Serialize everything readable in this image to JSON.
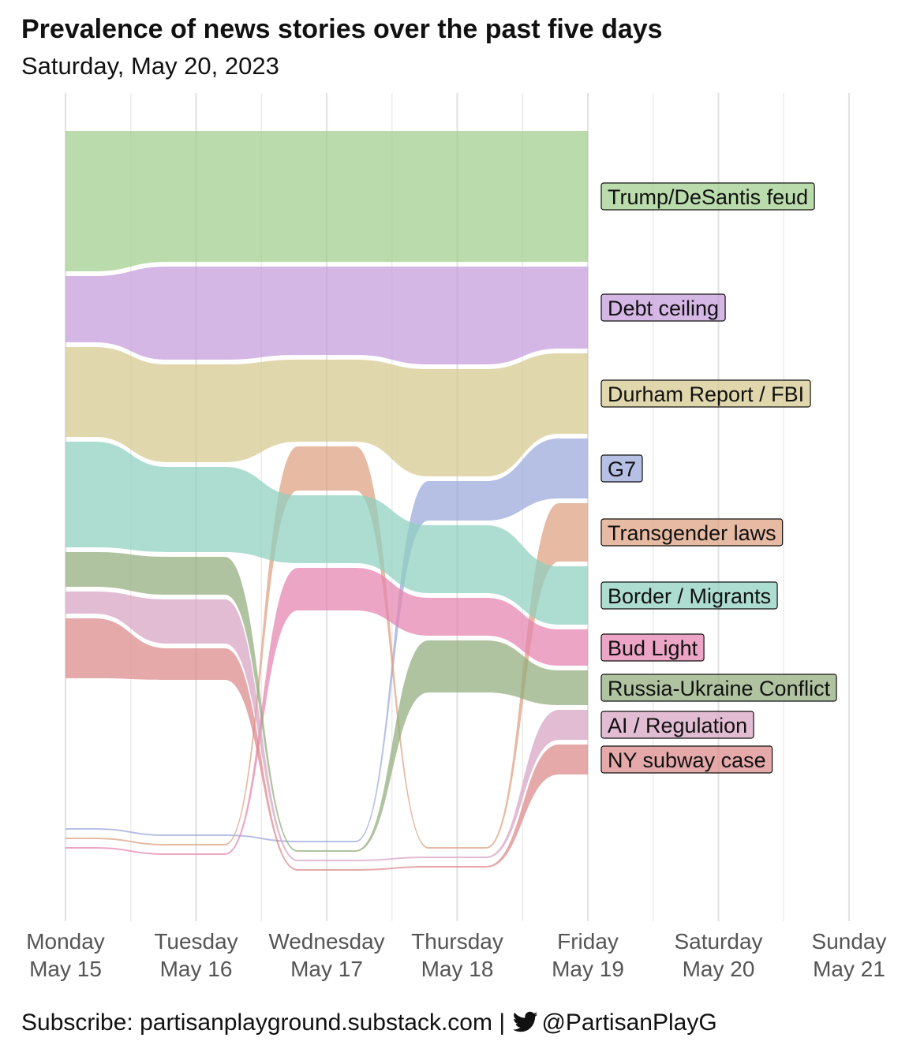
{
  "title": "Prevalence of news stories over the past five days",
  "subtitle": "Saturday, May 20, 2023",
  "footer": {
    "text": "Subscribe: partisanplayground.substack.com | ",
    "handle": "@PartisanPlayG",
    "icon": "twitter-bird-icon"
  },
  "chart_data": {
    "type": "area",
    "subtype": "ranked bump-area (sankey-style) chart",
    "x_ticks": [
      {
        "day": "Monday",
        "date": "May 15"
      },
      {
        "day": "Tuesday",
        "date": "May 16"
      },
      {
        "day": "Wednesday",
        "date": "May 17"
      },
      {
        "day": "Thursday",
        "date": "May 18"
      },
      {
        "day": "Friday",
        "date": "May 19"
      },
      {
        "day": "Saturday",
        "date": "May 20"
      },
      {
        "day": "Sunday",
        "date": "May 21"
      }
    ],
    "days_with_data": 5,
    "grid": true,
    "legend": "direct labels at right end",
    "y_axis": "none (stacked prevalence, unlabelled)",
    "series": [
      {
        "name": "Trump/DeSantis feud",
        "color": "#9FCD8B",
        "values": [
          178,
          166,
          166,
          166,
          166
        ]
      },
      {
        "name": "Debt ceiling",
        "color": "#C39BDB",
        "values": [
          84,
          118,
          112,
          124,
          104
        ]
      },
      {
        "name": "Durham Report / FBI",
        "color": "#D6C88C",
        "values": [
          114,
          124,
          104,
          136,
          102
        ]
      },
      {
        "name": "G7",
        "color": "#9AA6DA",
        "values": [
          0,
          0,
          0,
          50,
          76
        ]
      },
      {
        "name": "Transgender laws",
        "color": "#DDA07F",
        "values": [
          0,
          0,
          56,
          0,
          74
        ]
      },
      {
        "name": "Border / Migrants",
        "color": "#8DD0BF",
        "values": [
          134,
          108,
          86,
          86,
          74
        ]
      },
      {
        "name": "Bud Light",
        "color": "#E582AE",
        "values": [
          0,
          0,
          54,
          48,
          46
        ]
      },
      {
        "name": "Russia-Ukraine Conflict",
        "color": "#91AC7C",
        "values": [
          44,
          48,
          0,
          66,
          44
        ]
      },
      {
        "name": "AI / Regulation",
        "color": "#D7A2C1",
        "values": [
          28,
          56,
          0,
          0,
          38
        ]
      },
      {
        "name": "NY subway case",
        "color": "#DB8889",
        "values": [
          76,
          40,
          0,
          0,
          38
        ]
      }
    ],
    "unlabelled_series_color": "#AAAAAA"
  }
}
